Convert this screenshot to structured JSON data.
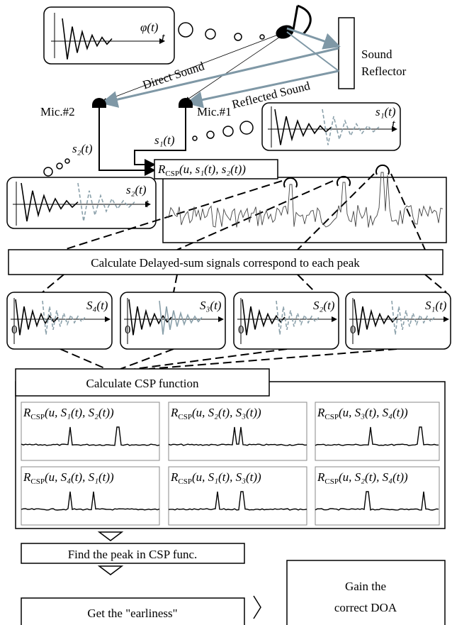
{
  "top": {
    "phi_label": "φ(t)",
    "t_label": "t",
    "direct_sound": "Direct Sound",
    "reflected_sound": "Reflected Sound",
    "reflector": [
      "Sound",
      "Reflector"
    ]
  },
  "mics": {
    "mic2": "Mic.#2",
    "mic1": "Mic.#1",
    "s1_label": "s₁(t)",
    "s2_label": "s₂(t)",
    "s1_box_label": "s₁(t)",
    "s2_box_label": "s₂(t)",
    "t1": "t",
    "t2": "t"
  },
  "csp_input": {
    "main": "R",
    "sub": "CSP",
    "rest": "(u, s₁(t), s₂(t))"
  },
  "delayed_sum": {
    "title": "Calculate Delayed-sum signals correspond to each peak",
    "signals": [
      "S₄(t)",
      "S₃(t)",
      "S₂(t)",
      "S₁(t)"
    ],
    "zero": "0"
  },
  "csp": {
    "title": "Calculate CSP function",
    "panels": [
      {
        "main": "R",
        "sub": "CSP",
        "rest": "(u, S₁(t), S₂(t))"
      },
      {
        "main": "R",
        "sub": "CSP",
        "rest": "(u, S₂(t), S₃(t))"
      },
      {
        "main": "R",
        "sub": "CSP",
        "rest": "(u, S₃(t), S₄(t))"
      },
      {
        "main": "R",
        "sub": "CSP",
        "rest": "(u, S₄(t), S₁(t))"
      },
      {
        "main": "R",
        "sub": "CSP",
        "rest": "(u, S₁(t), S₃(t))"
      },
      {
        "main": "R",
        "sub": "CSP",
        "rest": "(u, S₂(t), S₄(t))"
      }
    ]
  },
  "steps": {
    "find_peak": "Find the peak in CSP func.",
    "earliness": "Get the \"earliness\"",
    "result": [
      "Gain the",
      "correct DOA"
    ]
  }
}
